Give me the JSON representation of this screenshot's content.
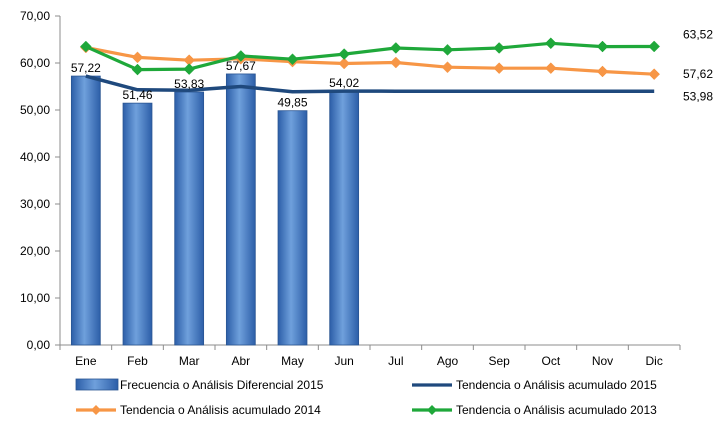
{
  "chart_data": {
    "type": "bar",
    "categories": [
      "Ene",
      "Feb",
      "Mar",
      "Abr",
      "May",
      "Jun",
      "Jul",
      "Ago",
      "Sep",
      "Oct",
      "Nov",
      "Dic"
    ],
    "ylim": [
      0,
      70
    ],
    "yticks": [
      "0,00",
      "10,00",
      "20,00",
      "30,00",
      "40,00",
      "50,00",
      "60,00",
      "70,00"
    ],
    "grid": false,
    "legend_position": "bottom",
    "series": [
      {
        "name": "Frecuencia o Análisis Diferencial 2015",
        "kind": "bar",
        "color": "#4a7fc8",
        "values": [
          57.22,
          51.46,
          53.83,
          57.67,
          49.85,
          54.02,
          null,
          null,
          null,
          null,
          null,
          null
        ],
        "labels": [
          "57,22",
          "51,46",
          "53,83",
          "57,67",
          "49,85",
          "54,02"
        ]
      },
      {
        "name": "Tendencia o Análisis acumulado 2015",
        "kind": "line",
        "color": "#1f497d",
        "values": [
          57.22,
          54.3,
          54.2,
          55.0,
          53.9,
          54.02,
          54.0,
          54.0,
          54.0,
          54.0,
          53.98,
          53.98
        ],
        "end_label": "53,98"
      },
      {
        "name": "Tendencia o Análisis acumulado 2014",
        "kind": "line",
        "color": "#f79646",
        "values": [
          63.3,
          61.2,
          60.6,
          60.9,
          60.3,
          59.9,
          60.1,
          59.1,
          58.9,
          58.9,
          58.2,
          57.62
        ],
        "end_label": "57,62"
      },
      {
        "name": "Tendencia o Análisis acumulado 2013",
        "kind": "line",
        "color": "#1fa83a",
        "values": [
          63.5,
          58.6,
          58.7,
          61.5,
          60.8,
          61.9,
          63.2,
          62.8,
          63.2,
          64.2,
          63.5,
          63.52
        ],
        "end_label": "63,52"
      }
    ]
  }
}
